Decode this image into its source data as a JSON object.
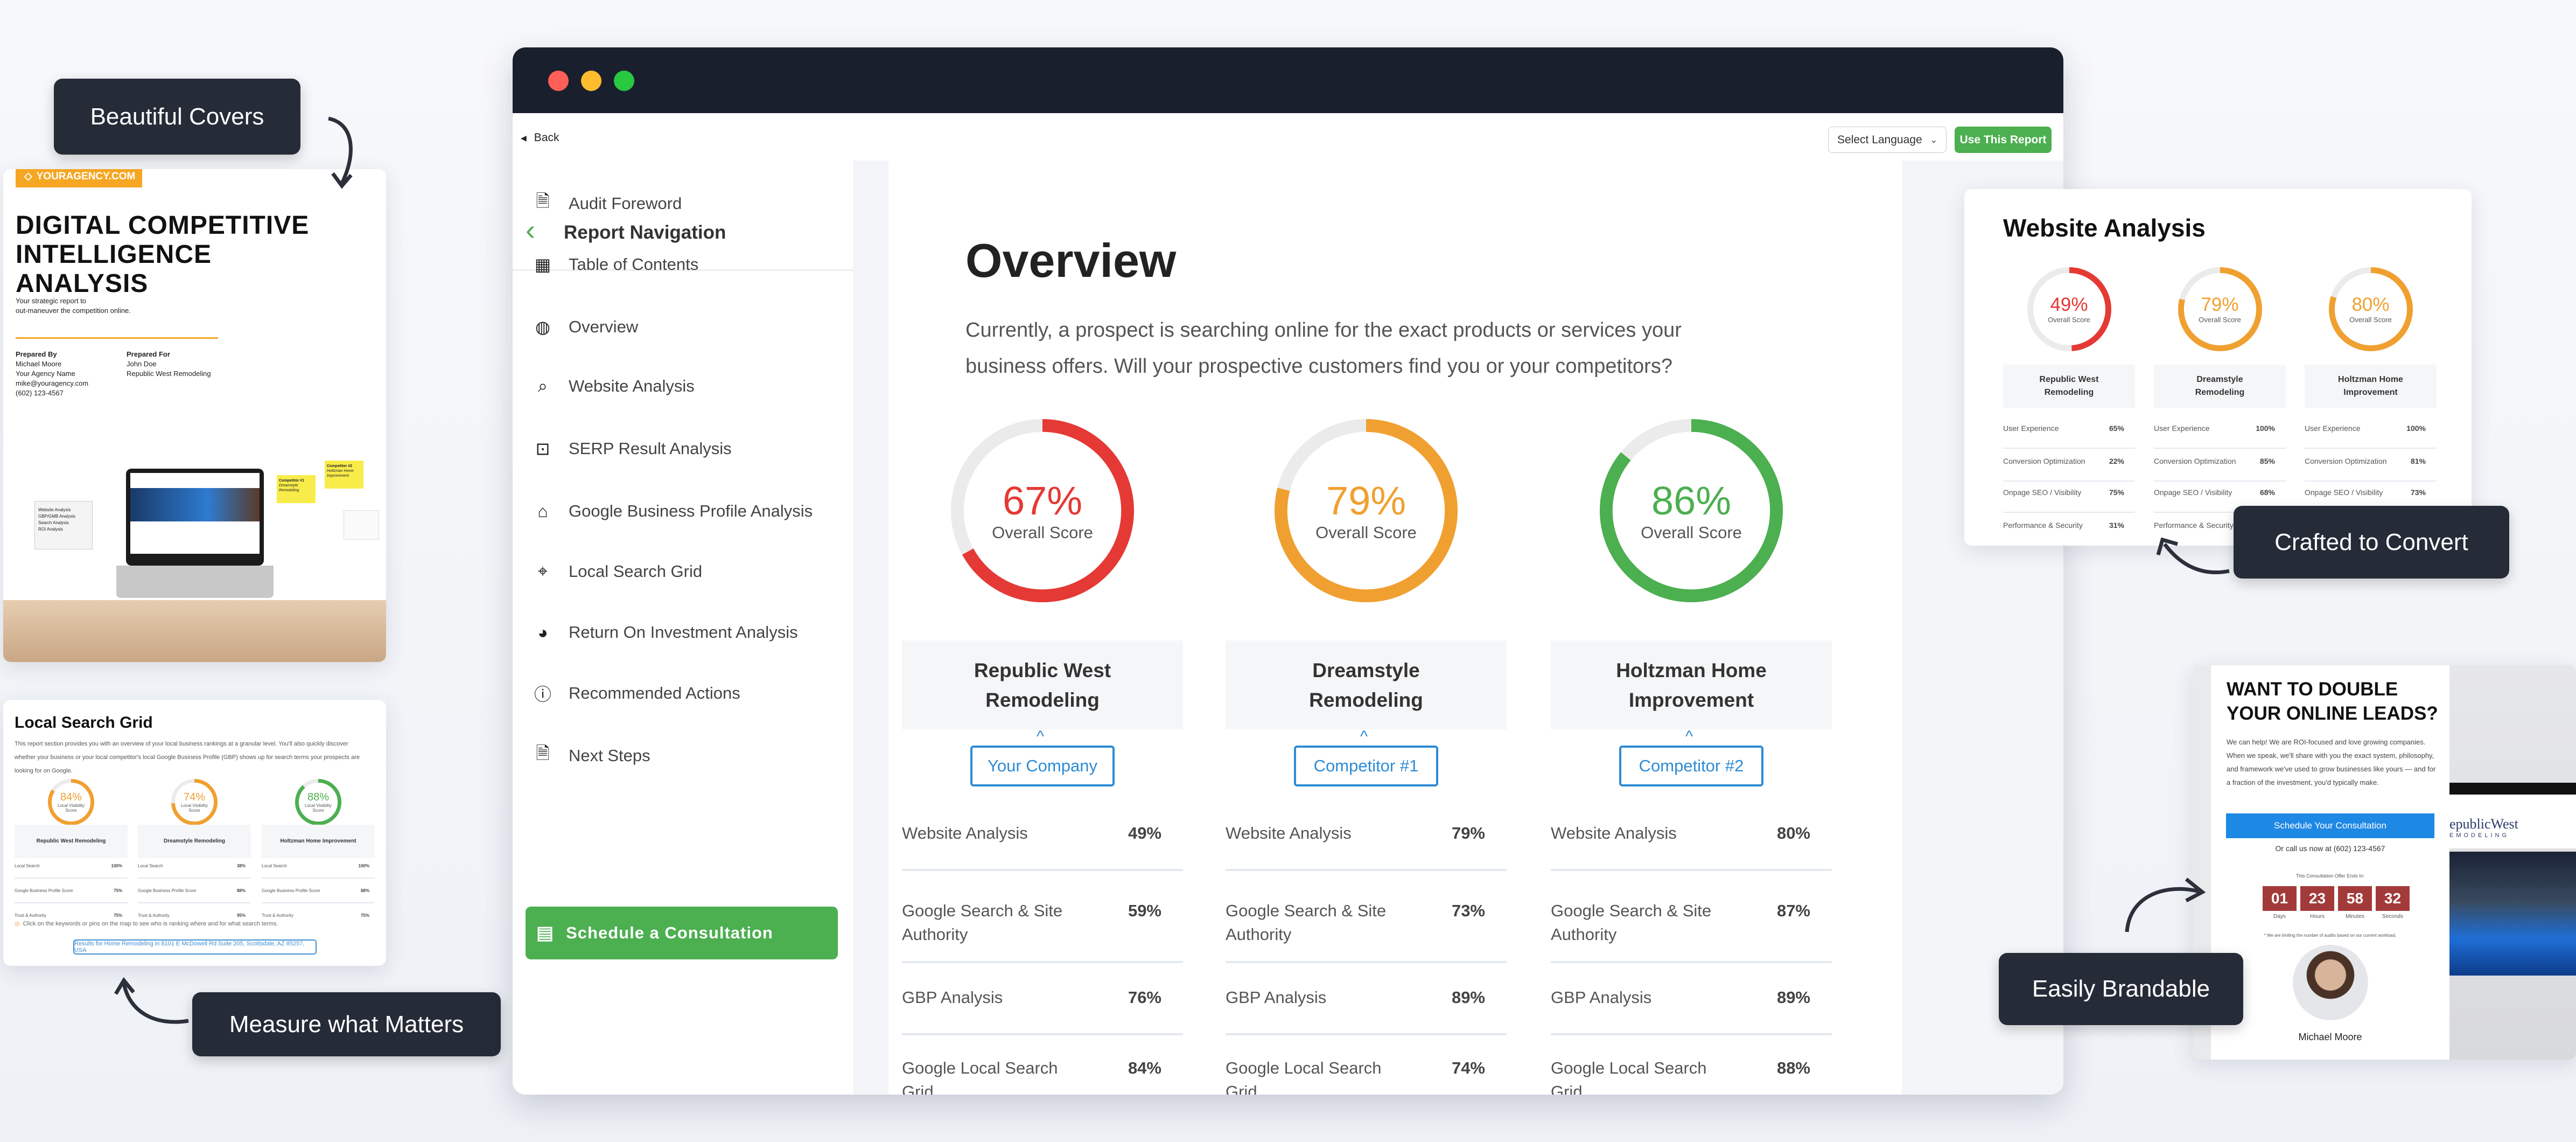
{
  "callouts": {
    "covers": "Beautiful Covers",
    "measure": "Measure what Matters",
    "convert": "Crafted to Convert",
    "brandable": "Easily Brandable"
  },
  "cover": {
    "logo": "YOURAGENCY.COM",
    "title_lines": [
      "DIGITAL COMPETITIVE",
      "INTELLIGENCE",
      "ANALYSIS"
    ],
    "subtitle_lines": [
      "Your strategic report to",
      "out-maneuver the competition online."
    ],
    "prepared_by": {
      "label": "Prepared By",
      "lines": [
        "Michael Moore",
        "Your Agency Name",
        "mike@youragency.com",
        "(602) 123-4567"
      ]
    },
    "prepared_for": {
      "label": "Prepared For",
      "lines": [
        "John Doe",
        "Republic West Remodeling"
      ]
    },
    "checklist": [
      "Website Analysis",
      "GBP/GMB Analysis",
      "Search Analysis",
      "ROI Analysis"
    ],
    "notes": [
      {
        "title": "Competitor #1",
        "text": "Dreamstyle Remodeling"
      },
      {
        "title": "Competitor #2",
        "text": "Holtzman Home Improvement"
      }
    ],
    "accent": "#f5a623"
  },
  "local_grid": {
    "title": "Local Search Grid",
    "intro": "This report section provides you with an overview of your local business rankings at a granular level. You'll also quickly discover whether your business or your local competitor's local Google Business Profile (GBP) shows up for search terms your prospects are looking for on Google.",
    "score_label": "Local Visibility Score",
    "columns": [
      {
        "name": "Republic West Remodeling",
        "score": 84,
        "score_text": "84%",
        "color": "#f0a030",
        "rows": [
          [
            "Local Search",
            "100%"
          ],
          [
            "Google Business Profile Score",
            "75%"
          ],
          [
            "Trust & Authority",
            "75%"
          ]
        ]
      },
      {
        "name": "Dreamstyle Remodeling",
        "score": 74,
        "score_text": "74%",
        "color": "#f0a030",
        "rows": [
          [
            "Local Search",
            "38%"
          ],
          [
            "Google Business Profile Score",
            "88%"
          ],
          [
            "Trust & Authority",
            "95%"
          ]
        ]
      },
      {
        "name": "Holtzman Home Improvement",
        "score": 88,
        "score_text": "88%",
        "color": "#4caf50",
        "rows": [
          [
            "Local Search",
            "100%"
          ],
          [
            "Google Business Profile Score",
            "88%"
          ],
          [
            "Trust & Authority",
            "75%"
          ]
        ]
      }
    ],
    "hint": "Click on the keywords or pins on the map to see who is ranking where and for what search terms.",
    "results_button": "Results for Home Remodeling in 8101 E McDowell Rd Suite 205, Scottsdale, AZ 85257, USA"
  },
  "window": {
    "back": "Back",
    "language_select": "Select Language",
    "use_report": "Use This Report",
    "traffic_lights": [
      "#ff5f57",
      "#febc2e",
      "#28c840"
    ]
  },
  "sidebar": {
    "title": "Report Navigation",
    "items": [
      {
        "label": "Audit Foreword",
        "icon": "document-icon"
      },
      {
        "label": "Table of Contents",
        "icon": "table-icon"
      },
      {
        "label": "Overview",
        "icon": "globe-icon"
      },
      {
        "label": "Website Analysis",
        "icon": "magnifier-icon"
      },
      {
        "label": "SERP Result Analysis",
        "icon": "serp-icon"
      },
      {
        "label": "Google Business Profile Analysis",
        "icon": "storefront-icon"
      },
      {
        "label": "Local Search Grid",
        "icon": "map-pin-icon"
      },
      {
        "label": "Return On Investment Analysis",
        "icon": "chart-circle-icon"
      },
      {
        "label": "Recommended Actions",
        "icon": "alert-icon"
      },
      {
        "label": "Next Steps",
        "icon": "document-icon"
      }
    ],
    "cta": "Schedule a Consultation",
    "cta_color": "#4caf50"
  },
  "overview": {
    "title": "Overview",
    "intro": "Currently, a prospect is searching online for the exact products or services your business offers. Will your prospective customers find you or your competitors?",
    "score_label": "Overall Score",
    "columns": [
      {
        "name": "Republic West Remodeling",
        "tag": "Your Company",
        "score": 67,
        "score_text": "67%",
        "color": "#e53935",
        "rows": [
          [
            "Website Analysis",
            "49%"
          ],
          [
            "Google Search & Site Authority",
            "59%"
          ],
          [
            "GBP Analysis",
            "76%"
          ],
          [
            "Google Local Search Grid",
            "84%"
          ]
        ]
      },
      {
        "name": "Dreamstyle Remodeling",
        "tag": "Competitor #1",
        "score": 79,
        "score_text": "79%",
        "color": "#f0a030",
        "rows": [
          [
            "Website Analysis",
            "79%"
          ],
          [
            "Google Search & Site Authority",
            "73%"
          ],
          [
            "GBP Analysis",
            "89%"
          ],
          [
            "Google Local Search Grid",
            "74%"
          ]
        ]
      },
      {
        "name": "Holtzman Home Improvement",
        "tag": "Competitor #2",
        "score": 86,
        "score_text": "86%",
        "color": "#4caf50",
        "rows": [
          [
            "Website Analysis",
            "80%"
          ],
          [
            "Google Search & Site Authority",
            "87%"
          ],
          [
            "GBP Analysis",
            "89%"
          ],
          [
            "Google Local Search Grid",
            "88%"
          ]
        ]
      }
    ]
  },
  "website_analysis": {
    "title": "Website Analysis",
    "score_label": "Overall Score",
    "columns": [
      {
        "name": "Republic West Remodeling",
        "score": 49,
        "score_text": "49%",
        "color": "#e53935",
        "rows": [
          [
            "User Experience",
            "65%"
          ],
          [
            "Conversion Optimization",
            "22%"
          ],
          [
            "Onpage SEO / Visibility",
            "75%"
          ],
          [
            "Performance & Security",
            "31%"
          ]
        ]
      },
      {
        "name": "Dreamstyle Remodeling",
        "score": 79,
        "score_text": "79%",
        "color": "#f0a030",
        "rows": [
          [
            "User Experience",
            "100%"
          ],
          [
            "Conversion Optimization",
            "85%"
          ],
          [
            "Onpage SEO / Visibility",
            "68%"
          ],
          [
            "Performance & Security",
            ""
          ]
        ]
      },
      {
        "name": "Holtzman Home Improvement",
        "score": 80,
        "score_text": "80%",
        "color": "#f0a030",
        "rows": [
          [
            "User Experience",
            "100%"
          ],
          [
            "Conversion Optimization",
            "81%"
          ],
          [
            "Onpage SEO / Visibility",
            "73%"
          ],
          [
            "",
            ""
          ]
        ]
      }
    ]
  },
  "leads": {
    "heading_lines": [
      "WANT TO DOUBLE",
      "YOUR ONLINE LEADS?"
    ],
    "body": "We can help! We are ROI-focused and love growing companies. When we speak, we'll share with you the exact system, philosophy, and framework we've used to grow businesses like yours — and for a fraction of the investment, you'd typically make.",
    "button": "Schedule Your Consultation",
    "button_color": "#1e88e5",
    "call": "Or call us now at (602) 123-4567",
    "offer_label": "This Consultation Offer Ends In:",
    "countdown": [
      {
        "value": "01",
        "unit": "Days"
      },
      {
        "value": "23",
        "unit": "Hours"
      },
      {
        "value": "58",
        "unit": "Minutes"
      },
      {
        "value": "32",
        "unit": "Seconds"
      }
    ],
    "note": "* We are limiting the number of audits based on our current workload.",
    "person": "Michael Moore",
    "brand_logo": "epublicWest",
    "brand_sub": "EMODELING"
  }
}
